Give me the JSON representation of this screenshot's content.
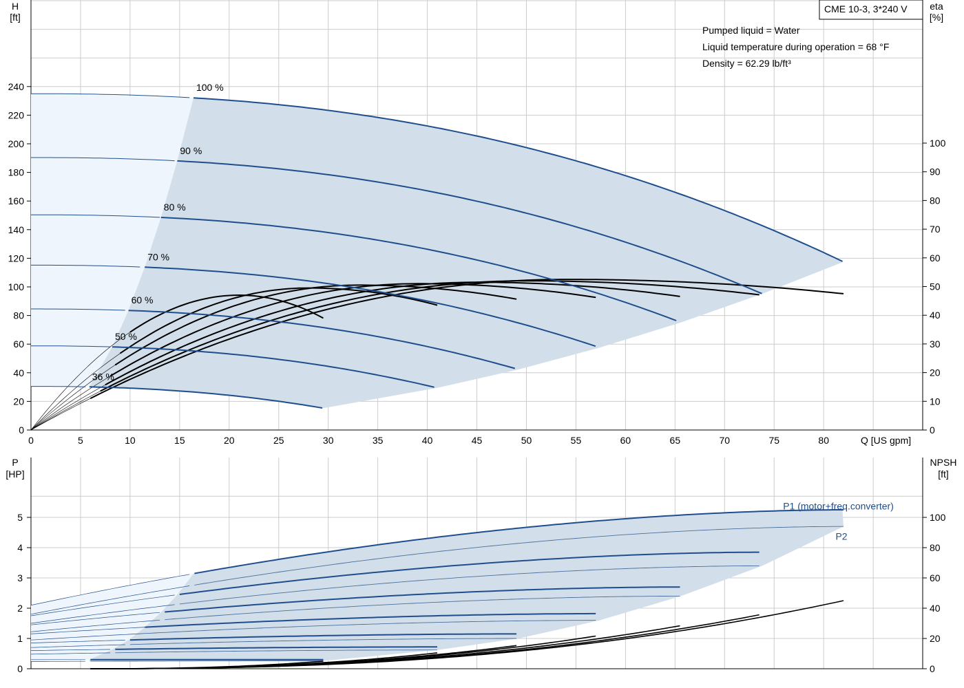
{
  "title_box": "CME 10-3, 3*240 V",
  "notes": [
    "Pumped liquid = Water",
    "Liquid temperature during operation = 68 °F",
    "Density = 62.29 lb/ft³"
  ],
  "colors": {
    "head_curve": "#1f4e8c",
    "fill": "#d2dee9",
    "fill_light": "#eef5fc",
    "grid": "#cccccc",
    "efficiency": "#000000"
  },
  "chart_data": [
    {
      "type": "line",
      "name": "head",
      "y_label_left": [
        "H",
        "[ft]"
      ],
      "y_label_right": [
        "eta",
        "[%]"
      ],
      "x_label": "Q [US gpm]",
      "xlim": [
        0,
        90
      ],
      "ylim_left": [
        0,
        240
      ],
      "ylim_right": [
        0,
        100
      ],
      "x_ticks": [
        0,
        5,
        10,
        15,
        20,
        25,
        30,
        35,
        40,
        45,
        50,
        55,
        60,
        65,
        70,
        75,
        80
      ],
      "y_ticks_left": [
        0,
        20,
        40,
        60,
        80,
        100,
        120,
        140,
        160,
        180,
        200,
        220,
        240
      ],
      "y_ticks_right": [
        0,
        10,
        20,
        30,
        40,
        50,
        60,
        70,
        80,
        90,
        100
      ],
      "grid": true,
      "speed_curves": [
        {
          "label": "100 %",
          "H0": 235,
          "Qmax": 82
        },
        {
          "label": "90 %",
          "H0": 190.4,
          "Qmax": 73.8
        },
        {
          "label": "80 %",
          "H0": 150.4,
          "Qmax": 65.6
        },
        {
          "label": "70 %",
          "H0": 115.2,
          "Qmax": 57.4
        },
        {
          "label": "60 %",
          "H0": 84.6,
          "Qmax": 49.2
        },
        {
          "label": "50 %",
          "H0": 58.8,
          "Qmax": 41
        },
        {
          "label": "36 %",
          "H0": 30.5,
          "Qmax": 29.5
        }
      ],
      "efficiency_curves": [
        {
          "Qbep": 54,
          "eta_max": 52.5,
          "Qend": 82,
          "eta_end": 47.5
        },
        {
          "Qbep": 50,
          "eta_max": 52,
          "Qend": 73.8,
          "eta_end": 47
        },
        {
          "Qbep": 45,
          "eta_max": 51.5,
          "Qend": 65.6,
          "eta_end": 46.5
        },
        {
          "Qbep": 39,
          "eta_max": 51,
          "Qend": 57.4,
          "eta_end": 46
        },
        {
          "Qbep": 33,
          "eta_max": 50.5,
          "Qend": 49.2,
          "eta_end": 45.5
        },
        {
          "Qbep": 28,
          "eta_max": 49.5,
          "Qend": 41,
          "eta_end": 43.5
        },
        {
          "Qbep": 21,
          "eta_max": 47,
          "Qend": 29.5,
          "eta_end": 39
        }
      ]
    },
    {
      "type": "line",
      "name": "power",
      "y_label_left": [
        "P",
        "[HP]"
      ],
      "y_label_right": [
        "NPSH",
        "[ft]"
      ],
      "xlim": [
        0,
        90
      ],
      "ylim_left": [
        0,
        6
      ],
      "ylim_right": [
        0,
        120
      ],
      "y_ticks_left": [
        0,
        1,
        2,
        3,
        4,
        5
      ],
      "y_ticks_right": [
        0,
        20,
        40,
        60,
        80,
        100
      ],
      "grid": true,
      "series_labels": {
        "p1": "P1 (motor+freq.converter)",
        "p2": "P2"
      },
      "power_curves": [
        {
          "Qmax": 82,
          "P1_0": 2.1,
          "P1_max": 5.25,
          "P2_0": 1.8,
          "P2_max": 4.7
        },
        {
          "Qmax": 73.8,
          "P1_0": 1.75,
          "P1_max": 3.85,
          "P2_0": 1.5,
          "P2_max": 3.4
        },
        {
          "Qmax": 65.6,
          "P1_0": 1.45,
          "P1_max": 2.7,
          "P2_0": 1.22,
          "P2_max": 2.4
        },
        {
          "Qmax": 57.4,
          "P1_0": 1.15,
          "P1_max": 1.82,
          "P2_0": 0.95,
          "P2_max": 1.6
        },
        {
          "Qmax": 49.2,
          "P1_0": 0.85,
          "P1_max": 1.15,
          "P2_0": 0.7,
          "P2_max": 1.0
        },
        {
          "Qmax": 41,
          "P1_0": 0.6,
          "P1_max": 0.72,
          "P2_0": 0.48,
          "P2_max": 0.62
        },
        {
          "Qmax": 29.5,
          "P1_0": 0.3,
          "P1_max": 0.3,
          "P2_0": 0.24,
          "P2_max": 0.26
        }
      ],
      "npsh_curves": [
        {
          "Qstart": 6,
          "Qend": 82,
          "npsh_end": 45
        },
        {
          "Qstart": 6,
          "Qend": 73.8,
          "npsh_end": 36
        },
        {
          "Qstart": 6,
          "Qend": 65.6,
          "npsh_end": 28.5
        },
        {
          "Qstart": 6,
          "Qend": 57.4,
          "npsh_end": 22
        },
        {
          "Qstart": 6,
          "Qend": 49.2,
          "npsh_end": 15.5
        },
        {
          "Qstart": 6,
          "Qend": 41,
          "npsh_end": 10.5
        },
        {
          "Qstart": 6,
          "Qend": 29.5,
          "npsh_end": 5
        }
      ]
    }
  ]
}
